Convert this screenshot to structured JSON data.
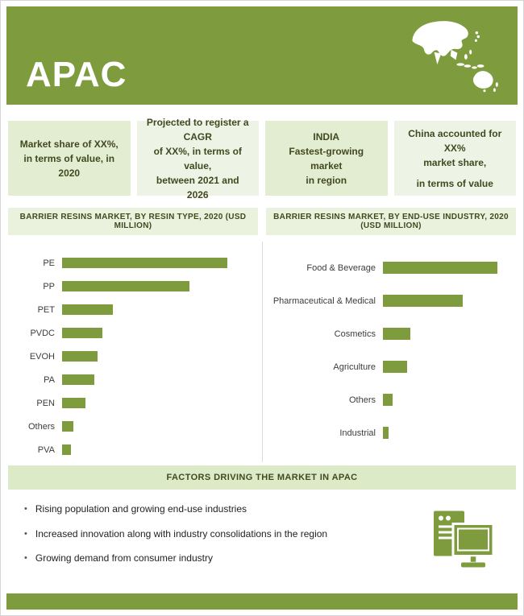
{
  "header": {
    "title": "APAC"
  },
  "colors": {
    "olive": "#7E9C3E",
    "stat_box_green": "#E3EDD2",
    "stat_box_green_light": "#EEF4E5",
    "title_bar_green": "#EAF1DD",
    "factors_band_green": "#DDEAC8",
    "text_dark_olive": "#42481F"
  },
  "stats": [
    {
      "lines": [
        "Market share of XX%,",
        "in terms of value, in 2020"
      ]
    },
    {
      "lines": [
        "Projected to register a CAGR",
        "of XX%, in terms of value,",
        "between 2021 and 2026"
      ]
    },
    {
      "lines": [
        "INDIA",
        "Fastest-growing market",
        "in region"
      ]
    },
    {
      "lines": [
        "China accounted for XX%",
        "market share,",
        "in terms of value"
      ]
    }
  ],
  "chart_data": [
    {
      "type": "bar",
      "orientation": "horizontal",
      "title": "BARRIER RESINS MARKET,  BY RESIN TYPE, 2020 (USD MILLION)",
      "categories": [
        "PE",
        "PP",
        "PET",
        "PVDC",
        "EVOH",
        "PA",
        "PEN",
        "Others",
        "PVA"
      ],
      "values": [
        195,
        150,
        60,
        48,
        42,
        38,
        28,
        13,
        10
      ],
      "value_labels_shown": false,
      "axis_shown": false,
      "note": "values estimated from bar lengths; actual USD figures masked in source",
      "xlim": [
        0,
        200
      ]
    },
    {
      "type": "bar",
      "orientation": "horizontal",
      "title": "BARRIER RESINS MARKET,  BY END-USE INDUSTRY, 2020 (USD MILLION)",
      "categories": [
        "Food & Beverage",
        "Pharmaceutical & Medical",
        "Cosmetics",
        "Agriculture",
        "Others",
        "Industrial"
      ],
      "values": [
        138,
        96,
        33,
        29,
        12,
        7
      ],
      "value_labels_shown": false,
      "axis_shown": false,
      "note": "values estimated from bar lengths; actual USD figures masked in source",
      "xlim": [
        0,
        140
      ]
    }
  ],
  "factors": {
    "title": "FACTORS DRIVING THE MARKET IN APAC",
    "items": [
      "Rising population and growing end-use industries",
      "Increased innovation along with industry consolidations in the region",
      "Growing demand from consumer industry"
    ]
  },
  "icons": {
    "map": "apac-map-icon",
    "devices": "computer-printer-icon"
  }
}
